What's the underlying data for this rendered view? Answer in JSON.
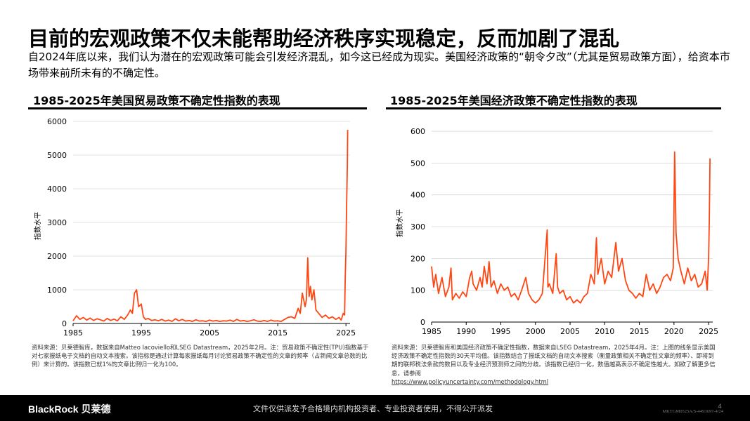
{
  "page": {
    "title": "目前的宏观政策不仅未能帮助经济秩序实现稳定，反而加剧了混乱",
    "subtitle": "自2024年底以来，我们认为潜在的宏观政策可能会引发经济混乱，如今这已经成为现实。美国经济政策的“朝令夕改”（尤其是贸易政策方面），给资本市场带来前所未有的不确定性。",
    "accent_color": "#FF4713"
  },
  "chart_data": [
    {
      "type": "line",
      "title": "1985-2025年美国贸易政策不确定性指数的表现",
      "ylabel": "指数水平",
      "xlabel": "",
      "xlim": [
        1985,
        2025.6
      ],
      "ylim": [
        0,
        6000
      ],
      "yticks": [
        0,
        1000,
        2000,
        3000,
        4000,
        5000,
        6000
      ],
      "xticks": [
        1985,
        1995,
        2005,
        2015,
        2025
      ],
      "grid": true,
      "series": [
        {
          "color": "#FF4713",
          "x": [
            1985,
            1985.5,
            1986,
            1986.5,
            1987,
            1987.5,
            1988,
            1988.5,
            1989,
            1989.5,
            1990,
            1990.5,
            1991,
            1991.5,
            1992,
            1992.5,
            1993,
            1993.4,
            1993.7,
            1994,
            1994.3,
            1994.6,
            1995,
            1995.3,
            1995.6,
            1996,
            1996.5,
            1997,
            1997.5,
            1998,
            1998.5,
            1999,
            1999.5,
            2000,
            2000.5,
            2001,
            2001.5,
            2002,
            2002.5,
            2003,
            2003.5,
            2004,
            2004.5,
            2005,
            2005.5,
            2006,
            2006.5,
            2007,
            2007.5,
            2008,
            2008.5,
            2009,
            2009.5,
            2010,
            2010.5,
            2011,
            2011.5,
            2012,
            2012.5,
            2013,
            2013.5,
            2014,
            2014.5,
            2015,
            2015.5,
            2016,
            2016.5,
            2017,
            2017.5,
            2018,
            2018.3,
            2018.6,
            2019,
            2019.2,
            2019.4,
            2019.6,
            2019.8,
            2020,
            2020.3,
            2020.6,
            2021,
            2021.5,
            2022,
            2022.5,
            2023,
            2023.5,
            2024,
            2024.3,
            2024.6,
            2024.8,
            2024.9,
            2025,
            2025.1,
            2025.2,
            2025.25
          ],
          "y": [
            80,
            230,
            120,
            180,
            100,
            160,
            90,
            140,
            110,
            70,
            150,
            90,
            130,
            80,
            200,
            120,
            250,
            400,
            300,
            900,
            1000,
            500,
            580,
            200,
            120,
            150,
            90,
            110,
            80,
            120,
            70,
            100,
            60,
            140,
            80,
            120,
            70,
            90,
            60,
            110,
            70,
            80,
            60,
            100,
            70,
            90,
            60,
            80,
            70,
            100,
            60,
            120,
            70,
            90,
            60,
            80,
            110,
            70,
            60,
            90,
            60,
            100,
            70,
            80,
            60,
            120,
            180,
            200,
            150,
            450,
            300,
            900,
            500,
            700,
            1950,
            800,
            1100,
            700,
            1000,
            400,
            300,
            180,
            250,
            150,
            200,
            120,
            180,
            100,
            300,
            250,
            1400,
            2200,
            3500,
            4600,
            5750
          ]
        }
      ]
    },
    {
      "type": "line",
      "title": "1985-2025年美国经济政策不确定性指数的表现",
      "ylabel": "指数水平",
      "xlabel": "",
      "xlim": [
        1985,
        2025.6
      ],
      "ylim": [
        0,
        620
      ],
      "yticks": [
        0,
        100,
        200,
        300,
        400,
        500,
        600
      ],
      "xticks": [
        1985,
        1990,
        1995,
        2000,
        2005,
        2010,
        2015,
        2020,
        2025
      ],
      "grid": true,
      "series": [
        {
          "color": "#FF4713",
          "x": [
            1985,
            1985.3,
            1985.6,
            1986,
            1986.5,
            1987,
            1987.5,
            1987.8,
            1988,
            1988.5,
            1989,
            1989.5,
            1990,
            1990.5,
            1990.8,
            1991,
            1991.5,
            1992,
            1992.3,
            1992.6,
            1993,
            1993.3,
            1993.6,
            1994,
            1994.5,
            1995,
            1995.5,
            1996,
            1996.5,
            1997,
            1997.5,
            1998,
            1998.6,
            1999,
            1999.5,
            2000,
            2000.5,
            2001,
            2001.7,
            2001.8,
            2002,
            2002.5,
            2003,
            2003.2,
            2003.5,
            2004,
            2004.5,
            2005,
            2005.5,
            2006,
            2006.5,
            2007,
            2007.5,
            2008,
            2008.5,
            2008.8,
            2009,
            2009.5,
            2010,
            2010.5,
            2011,
            2011.6,
            2012,
            2012.5,
            2013,
            2013.5,
            2014,
            2014.5,
            2015,
            2015.5,
            2016,
            2016.5,
            2017,
            2017.5,
            2018,
            2018.5,
            2019,
            2019.5,
            2019.9,
            2020.1,
            2020.3,
            2020.6,
            2021,
            2021.5,
            2022,
            2022.5,
            2023,
            2023.5,
            2024,
            2024.5,
            2024.8,
            2025,
            2025.1,
            2025.2
          ],
          "y": [
            175,
            110,
            150,
            90,
            140,
            80,
            110,
            170,
            70,
            90,
            75,
            95,
            80,
            140,
            160,
            120,
            100,
            140,
            110,
            175,
            120,
            190,
            110,
            130,
            90,
            120,
            100,
            110,
            80,
            90,
            70,
            100,
            140,
            90,
            70,
            60,
            70,
            90,
            290,
            110,
            120,
            90,
            215,
            110,
            90,
            100,
            70,
            80,
            60,
            70,
            60,
            80,
            90,
            150,
            120,
            265,
            150,
            200,
            120,
            160,
            140,
            250,
            160,
            200,
            130,
            100,
            90,
            75,
            90,
            80,
            150,
            100,
            120,
            90,
            110,
            140,
            150,
            130,
            170,
            535,
            280,
            200,
            160,
            120,
            170,
            130,
            150,
            110,
            120,
            160,
            100,
            200,
            320,
            515
          ]
        }
      ]
    }
  ],
  "charts": [
    {
      "heading": "1985-2025年美国贸易政策不确定性指数的表现",
      "note": "资料来源：贝莱德智库，数据来自Matteo Iacoviello和LSEG Datastream，2025年2月。注：贸易政策不确定性(TPU)指数基于对七家报纸电子文档的自动文本搜索。该指标是通过计算每家报纸每月讨论贸易政策不确定性的文章的频率（占新闻文章总数的比例）来计算的。该指数已就1%的文章比例归一化为100。"
    },
    {
      "heading": "1985-2025年美国经济政策不确定性指数的表现",
      "note": "资料来源：贝莱德智库和美国经济政策不确定性指数，数据来自LSEG Datastream，2025年4月。注：上图的线条显示美国经济政策不确定性指数的30天平均值。该指数结合了报纸文档的自动文本搜索（衡量政策相关不确定性文章的频率）、即将到期的联邦税法条款的数目以及专业经济预测师之间的分歧。该指数已经归一化，数值越高表示不确定性越大。如欲了解更多信息，请参阅",
      "link": "https://www.policyuncertainty.com/methodology.html"
    }
  ],
  "footer": {
    "logo": "BlackRock 贝莱德",
    "disclaimer": "文件仅供派发予合格境内机构投资者、专业投资者使用，不得公开派发",
    "code": "MKTGM0525A/S-4493697-4/24",
    "page_number": "4"
  }
}
